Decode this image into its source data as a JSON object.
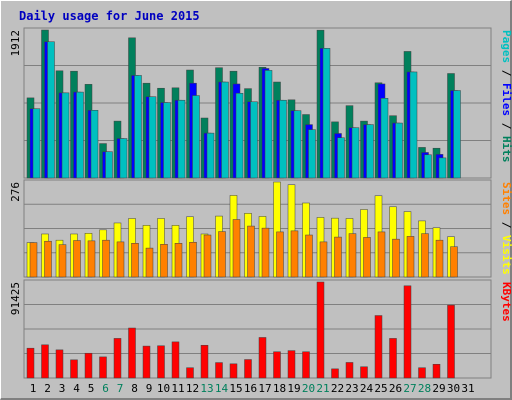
{
  "chart_data": {
    "type": "bar",
    "title": "Daily usage for June 2015",
    "colors": {
      "title": "#0000c0",
      "pages": "#00c0c0",
      "files": "#0000ff",
      "hits": "#00805c",
      "sites": "#ff8000",
      "visits": "#ffff00",
      "kbytes": "#ff0000",
      "weekend_label": "#00805c",
      "plot_bg": "#c0c0c0",
      "gridline": "#808080"
    },
    "categories": [
      "1",
      "2",
      "3",
      "4",
      "5",
      "6",
      "7",
      "8",
      "9",
      "10",
      "11",
      "12",
      "13",
      "14",
      "15",
      "16",
      "17",
      "18",
      "19",
      "20",
      "21",
      "22",
      "23",
      "24",
      "25",
      "26",
      "27",
      "28",
      "29",
      "30",
      "31"
    ],
    "weekend_days": [
      "6",
      "7",
      "13",
      "14",
      "20",
      "21",
      "27",
      "28"
    ],
    "panels": [
      {
        "id": "hits-files-pages",
        "ymax_label": "1912",
        "ymax": 1912,
        "right_label": [
          {
            "text": "Pages",
            "color": "#00c0c0"
          },
          {
            "text": " / ",
            "color": "#000000"
          },
          {
            "text": "Files",
            "color": "#0000ff"
          },
          {
            "text": " / ",
            "color": "#000000"
          },
          {
            "text": "Hits",
            "color": "#00805c"
          }
        ],
        "series": [
          {
            "name": "Hits",
            "color": "#00805c",
            "values": [
              1035,
              1912,
              1385,
              1380,
              1210,
              445,
              735,
              1811,
              1225,
              1160,
              1165,
              1395,
              775,
              1425,
              1380,
              1155,
              1430,
              1240,
              1010,
              820,
              1910,
              725,
              935,
              735,
              1230,
              805,
              1635,
              395,
              385,
              1350,
              null
            ]
          },
          {
            "name": "Files",
            "color": "#0000ff",
            "values": [
              895,
              1760,
              1100,
              1110,
              875,
              340,
              510,
              1325,
              1050,
              975,
              1005,
              1225,
              580,
              1240,
              1215,
              985,
              1415,
              1005,
              870,
              690,
              1675,
              575,
              650,
              690,
              1215,
              710,
              1370,
              330,
              305,
              1130,
              null
            ]
          },
          {
            "name": "Pages",
            "color": "#00c0c0",
            "values": [
              895,
              1760,
              1100,
              1110,
              875,
              340,
              510,
              1325,
              1050,
              975,
              1005,
              1065,
              580,
              1240,
              1095,
              985,
              1390,
              1005,
              870,
              625,
              1675,
              520,
              650,
              690,
              1030,
              710,
              1370,
              300,
              260,
              1130,
              null
            ]
          }
        ]
      },
      {
        "id": "visits-sites",
        "ymax_label": "276",
        "ymax": 276,
        "right_label": [
          {
            "text": "Sites",
            "color": "#ff8000"
          },
          {
            "text": " / ",
            "color": "#000000"
          },
          {
            "text": "Visits",
            "color": "#ffff00"
          }
        ],
        "series": [
          {
            "name": "Visits",
            "color": "#ffff00",
            "values": [
              100,
              125,
              107,
              125,
              127,
              137,
              157,
              170,
              150,
              170,
              150,
              175,
              125,
              177,
              237,
              185,
              176,
              276,
              268,
              215,
              173,
              171,
              170,
              196,
              236,
              204,
              190,
              163,
              143,
              117,
              null
            ]
          },
          {
            "name": "Sites",
            "color": "#ff8000",
            "values": [
              100,
              104,
              94,
              106,
              105,
              107,
              102,
              98,
              84,
              95,
              98,
              101,
              122,
              132,
              167,
              148,
              142,
              131,
              134,
              122,
              102,
              116,
              126,
              115,
              131,
              110,
              118,
              126,
              107,
              88,
              null
            ]
          }
        ]
      },
      {
        "id": "kbytes",
        "ymax_label": "91425",
        "ymax": 91425,
        "right_label": [
          {
            "text": "KBytes",
            "color": "#ff0000"
          }
        ],
        "series": [
          {
            "name": "KBytes",
            "color": "#ff0000",
            "values": [
              28400,
              31600,
              26800,
              17300,
              23600,
              20100,
              37700,
              47600,
              30400,
              30700,
              34400,
              9800,
              31200,
              14700,
              13500,
              17600,
              38600,
              25000,
              26100,
              25000,
              91425,
              8700,
              14800,
              10700,
              59500,
              37700,
              87800,
              9800,
              13100,
              69400,
              null
            ]
          }
        ]
      }
    ]
  }
}
